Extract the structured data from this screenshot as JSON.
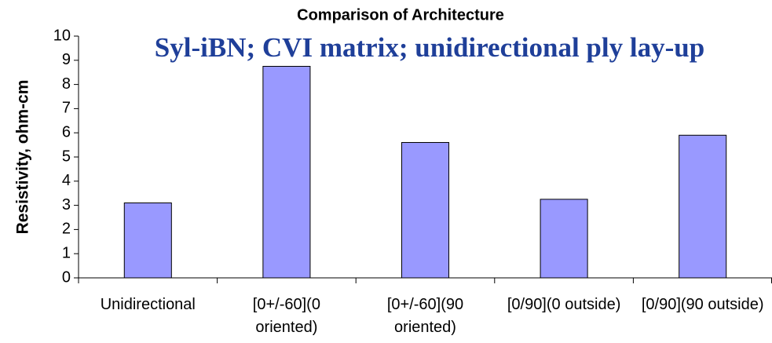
{
  "chart_data": {
    "type": "bar",
    "title": "Comparison of Architecture",
    "annotation": "Syl-iBN; CVI matrix; unidirectional ply lay-up",
    "y_label": "Resistivity, ohm-cm",
    "categories": [
      "Unidirectional",
      "[0+/-60](0 oriented)",
      "[0+/-60](90 oriented)",
      "[0/90](0 outside)",
      "[0/90](90 outside)"
    ],
    "values": [
      3.1,
      8.75,
      5.6,
      3.25,
      5.9
    ],
    "color": "#9999ff",
    "ylim": [
      0,
      10
    ],
    "yticks": [
      0,
      1,
      2,
      3,
      4,
      5,
      6,
      7,
      8,
      9,
      10
    ],
    "grid": false
  }
}
